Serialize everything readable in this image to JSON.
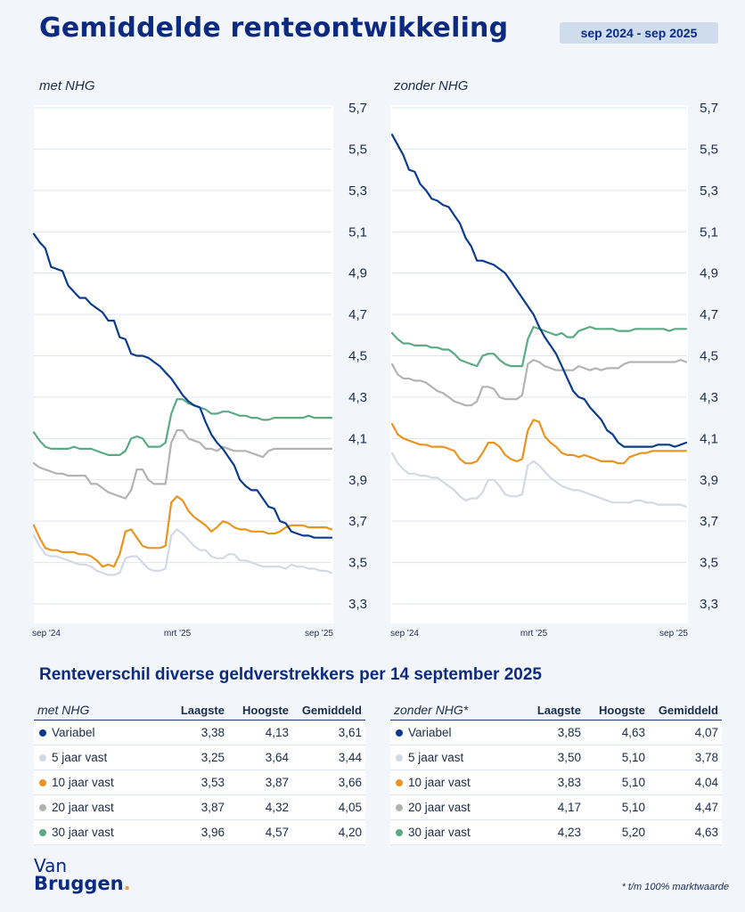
{
  "header": {
    "title": "Gemiddelde renteontwikkeling",
    "period": "sep 2024 - sep 2025"
  },
  "colors": {
    "variabel": "#0b3b8c",
    "5_jaar": "#d3d8e4",
    "10_jaar": "#ea9420",
    "20_jaar": "#b3b3b3",
    "30_jaar": "#5aab84",
    "title": "#0b2a80"
  },
  "chart_data": [
    {
      "type": "line",
      "title": "met NHG",
      "x_ticks": [
        "sep '24",
        "mrt '25",
        "sep '25"
      ],
      "y_ticks": [
        "5,7",
        "5,5",
        "5,3",
        "5,1",
        "4,9",
        "4,7",
        "4,5",
        "4,3",
        "4,1",
        "3,9",
        "3,7",
        "3,5",
        "3,3"
      ],
      "ylim": [
        3.3,
        5.7
      ],
      "y_axis_side": "right",
      "grid": true,
      "n_points": 53,
      "series": [
        {
          "key": "variabel",
          "values": [
            5.09,
            5.05,
            5.02,
            4.93,
            4.92,
            4.91,
            4.84,
            4.81,
            4.78,
            4.78,
            4.75,
            4.73,
            4.71,
            4.67,
            4.67,
            4.59,
            4.58,
            4.51,
            4.5,
            4.5,
            4.49,
            4.47,
            4.45,
            4.42,
            4.39,
            4.35,
            4.31,
            4.28,
            4.26,
            4.25,
            4.18,
            4.12,
            4.08,
            4.05,
            4.01,
            3.97,
            3.9,
            3.87,
            3.85,
            3.85,
            3.81,
            3.77,
            3.76,
            3.7,
            3.69,
            3.65,
            3.64,
            3.63,
            3.63,
            3.62,
            3.62,
            3.62,
            3.62
          ]
        },
        {
          "key": "5_jaar",
          "values": [
            3.63,
            3.58,
            3.54,
            3.53,
            3.53,
            3.52,
            3.51,
            3.5,
            3.49,
            3.49,
            3.48,
            3.46,
            3.45,
            3.44,
            3.44,
            3.45,
            3.52,
            3.53,
            3.53,
            3.5,
            3.47,
            3.46,
            3.46,
            3.47,
            3.63,
            3.66,
            3.64,
            3.61,
            3.58,
            3.56,
            3.56,
            3.53,
            3.52,
            3.52,
            3.54,
            3.54,
            3.51,
            3.51,
            3.5,
            3.49,
            3.48,
            3.48,
            3.48,
            3.48,
            3.47,
            3.49,
            3.48,
            3.48,
            3.47,
            3.47,
            3.46,
            3.46,
            3.45
          ]
        },
        {
          "key": "10_jaar",
          "values": [
            3.68,
            3.62,
            3.57,
            3.56,
            3.56,
            3.55,
            3.55,
            3.55,
            3.54,
            3.54,
            3.53,
            3.51,
            3.48,
            3.49,
            3.48,
            3.54,
            3.65,
            3.66,
            3.62,
            3.58,
            3.57,
            3.57,
            3.57,
            3.58,
            3.79,
            3.82,
            3.8,
            3.75,
            3.72,
            3.7,
            3.68,
            3.65,
            3.67,
            3.7,
            3.69,
            3.67,
            3.66,
            3.66,
            3.65,
            3.65,
            3.65,
            3.64,
            3.64,
            3.65,
            3.67,
            3.68,
            3.68,
            3.68,
            3.67,
            3.67,
            3.67,
            3.67,
            3.66
          ]
        },
        {
          "key": "20_jaar",
          "values": [
            3.98,
            3.96,
            3.95,
            3.94,
            3.93,
            3.93,
            3.92,
            3.92,
            3.92,
            3.92,
            3.88,
            3.88,
            3.86,
            3.84,
            3.83,
            3.82,
            3.81,
            3.85,
            3.95,
            3.95,
            3.9,
            3.88,
            3.88,
            3.88,
            4.08,
            4.14,
            4.14,
            4.1,
            4.09,
            4.08,
            4.05,
            4.05,
            4.04,
            4.06,
            4.05,
            4.04,
            4.04,
            4.04,
            4.03,
            4.02,
            4.01,
            4.04,
            4.05,
            4.05,
            4.05,
            4.05,
            4.05,
            4.05,
            4.05,
            4.05,
            4.05,
            4.05,
            4.05
          ]
        },
        {
          "key": "30_jaar",
          "values": [
            4.13,
            4.09,
            4.06,
            4.05,
            4.05,
            4.05,
            4.05,
            4.06,
            4.05,
            4.05,
            4.05,
            4.04,
            4.03,
            4.02,
            4.02,
            4.02,
            4.04,
            4.1,
            4.11,
            4.1,
            4.06,
            4.06,
            4.06,
            4.08,
            4.22,
            4.29,
            4.29,
            4.27,
            4.26,
            4.25,
            4.24,
            4.22,
            4.22,
            4.23,
            4.23,
            4.22,
            4.21,
            4.21,
            4.2,
            4.2,
            4.19,
            4.19,
            4.2,
            4.2,
            4.2,
            4.2,
            4.2,
            4.2,
            4.21,
            4.2,
            4.2,
            4.2,
            4.2
          ]
        }
      ]
    },
    {
      "type": "line",
      "title": "zonder NHG",
      "x_ticks": [
        "sep '24",
        "mrt '25",
        "sep '25"
      ],
      "y_ticks": [
        "5,7",
        "5,5",
        "5,3",
        "5,1",
        "4,9",
        "4,7",
        "4,5",
        "4,3",
        "4,1",
        "3,9",
        "3,7",
        "3,5",
        "3,3"
      ],
      "ylim": [
        3.3,
        5.7
      ],
      "y_axis_side": "right",
      "grid": true,
      "n_points": 53,
      "series": [
        {
          "key": "variabel",
          "values": [
            5.57,
            5.52,
            5.47,
            5.4,
            5.39,
            5.33,
            5.3,
            5.26,
            5.25,
            5.23,
            5.22,
            5.18,
            5.14,
            5.07,
            5.03,
            4.96,
            4.96,
            4.95,
            4.94,
            4.92,
            4.9,
            4.86,
            4.82,
            4.78,
            4.74,
            4.7,
            4.64,
            4.59,
            4.55,
            4.51,
            4.45,
            4.39,
            4.33,
            4.3,
            4.29,
            4.25,
            4.22,
            4.19,
            4.14,
            4.12,
            4.08,
            4.06,
            4.06,
            4.06,
            4.06,
            4.06,
            4.06,
            4.07,
            4.07,
            4.07,
            4.06,
            4.07,
            4.08
          ]
        },
        {
          "key": "5_jaar",
          "values": [
            4.03,
            3.98,
            3.95,
            3.93,
            3.93,
            3.92,
            3.92,
            3.91,
            3.91,
            3.89,
            3.87,
            3.85,
            3.82,
            3.8,
            3.81,
            3.81,
            3.84,
            3.9,
            3.9,
            3.87,
            3.83,
            3.82,
            3.82,
            3.83,
            3.97,
            3.99,
            3.97,
            3.94,
            3.91,
            3.89,
            3.87,
            3.86,
            3.85,
            3.85,
            3.84,
            3.83,
            3.82,
            3.81,
            3.8,
            3.79,
            3.79,
            3.79,
            3.79,
            3.8,
            3.8,
            3.79,
            3.79,
            3.78,
            3.78,
            3.78,
            3.78,
            3.78,
            3.77
          ]
        },
        {
          "key": "10_jaar",
          "values": [
            4.17,
            4.12,
            4.1,
            4.09,
            4.08,
            4.07,
            4.07,
            4.06,
            4.06,
            4.06,
            4.05,
            4.04,
            4.0,
            3.98,
            3.98,
            3.99,
            4.03,
            4.08,
            4.08,
            4.06,
            4.02,
            4.0,
            3.99,
            4.0,
            4.14,
            4.19,
            4.18,
            4.11,
            4.08,
            4.06,
            4.03,
            4.02,
            4.02,
            4.01,
            4.02,
            4.01,
            4.0,
            3.99,
            3.99,
            3.99,
            3.98,
            3.98,
            4.01,
            4.02,
            4.03,
            4.03,
            4.04,
            4.04,
            4.04,
            4.04,
            4.04,
            4.04,
            4.04
          ]
        },
        {
          "key": "20_jaar",
          "values": [
            4.46,
            4.41,
            4.39,
            4.39,
            4.38,
            4.38,
            4.37,
            4.35,
            4.33,
            4.32,
            4.3,
            4.28,
            4.27,
            4.26,
            4.26,
            4.28,
            4.35,
            4.35,
            4.34,
            4.3,
            4.29,
            4.29,
            4.29,
            4.31,
            4.46,
            4.48,
            4.47,
            4.45,
            4.44,
            4.43,
            4.43,
            4.43,
            4.43,
            4.45,
            4.44,
            4.43,
            4.44,
            4.43,
            4.44,
            4.44,
            4.44,
            4.46,
            4.47,
            4.47,
            4.47,
            4.47,
            4.47,
            4.47,
            4.47,
            4.47,
            4.47,
            4.48,
            4.47
          ]
        },
        {
          "key": "30_jaar",
          "values": [
            4.61,
            4.58,
            4.56,
            4.56,
            4.55,
            4.55,
            4.55,
            4.54,
            4.54,
            4.53,
            4.53,
            4.51,
            4.48,
            4.47,
            4.46,
            4.45,
            4.5,
            4.51,
            4.51,
            4.48,
            4.46,
            4.45,
            4.45,
            4.45,
            4.58,
            4.64,
            4.63,
            4.62,
            4.61,
            4.6,
            4.61,
            4.59,
            4.59,
            4.62,
            4.63,
            4.64,
            4.63,
            4.63,
            4.63,
            4.63,
            4.62,
            4.62,
            4.62,
            4.63,
            4.63,
            4.63,
            4.63,
            4.63,
            4.63,
            4.62,
            4.63,
            4.63,
            4.63
          ]
        }
      ]
    }
  ],
  "table_section": {
    "title": "Renteverschil diverse geldverstrekkers per 14 september 2025",
    "columns": [
      "Laagste",
      "Hoogste",
      "Gemiddeld"
    ],
    "tables": [
      {
        "name": "met NHG",
        "rows": [
          {
            "label": "Variabel",
            "color_key": "variabel",
            "values": [
              "3,38",
              "4,13",
              "3,61"
            ]
          },
          {
            "label": "5 jaar vast",
            "color_key": "5_jaar",
            "values": [
              "3,25",
              "3,64",
              "3,44"
            ]
          },
          {
            "label": "10 jaar vast",
            "color_key": "10_jaar",
            "values": [
              "3,53",
              "3,87",
              "3,66"
            ]
          },
          {
            "label": "20 jaar vast",
            "color_key": "20_jaar",
            "values": [
              "3,87",
              "4,32",
              "4,05"
            ]
          },
          {
            "label": "30 jaar vast",
            "color_key": "30_jaar",
            "values": [
              "3,96",
              "4,57",
              "4,20"
            ]
          }
        ]
      },
      {
        "name": "zonder NHG*",
        "rows": [
          {
            "label": "Variabel",
            "color_key": "variabel",
            "values": [
              "3,85",
              "4,63",
              "4,07"
            ]
          },
          {
            "label": "5 jaar vast",
            "color_key": "5_jaar",
            "values": [
              "3,50",
              "5,10",
              "3,78"
            ]
          },
          {
            "label": "10 jaar vast",
            "color_key": "10_jaar",
            "values": [
              "3,83",
              "5,10",
              "4,04"
            ]
          },
          {
            "label": "20 jaar vast",
            "color_key": "20_jaar",
            "values": [
              "4,17",
              "5,10",
              "4,47"
            ]
          },
          {
            "label": "30 jaar vast",
            "color_key": "30_jaar",
            "values": [
              "4,23",
              "5,20",
              "4,63"
            ]
          }
        ]
      }
    ]
  },
  "logo": {
    "line1": "Van",
    "line2": "Bruggen",
    "dot": "."
  },
  "footnote": "* t/m 100% marktwaarde"
}
